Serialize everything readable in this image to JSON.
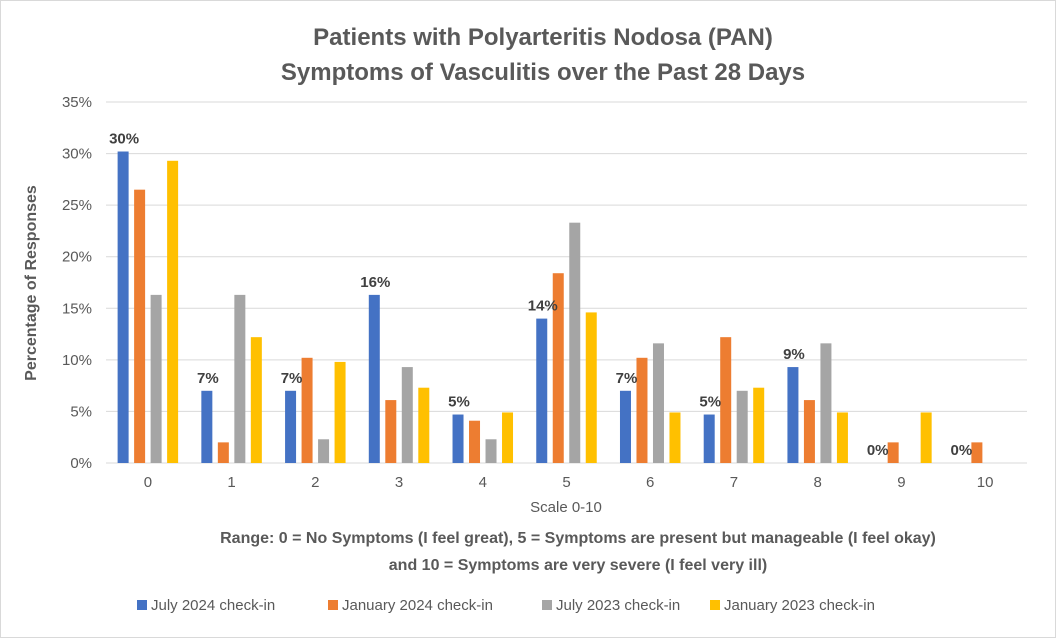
{
  "chart_data": {
    "type": "bar",
    "title": [
      "Patients with Polyarteritis Nodosa (PAN)",
      "Symptoms of Vasculitis over the Past 28 Days"
    ],
    "xlabel": "Scale 0-10",
    "ylabel": "Percentage of Responses",
    "note": [
      "Range: 0 = No Symptoms (I feel great), 5 = Symptoms are present but manageable (I feel okay)",
      "and 10 = Symptoms are very severe (I feel very ill)"
    ],
    "categories": [
      "0",
      "1",
      "2",
      "3",
      "4",
      "5",
      "6",
      "7",
      "8",
      "9",
      "10"
    ],
    "ylim": [
      0,
      35
    ],
    "yticks": [
      "0%",
      "5%",
      "10%",
      "15%",
      "20%",
      "25%",
      "30%",
      "35%"
    ],
    "grid": true,
    "legend_position": "bottom",
    "series": [
      {
        "name": "July 2024 check-in",
        "color": "#4472C4",
        "values": [
          30.2,
          7.0,
          7.0,
          16.3,
          4.7,
          14.0,
          7.0,
          4.7,
          9.3,
          0,
          0
        ],
        "labels": [
          "30%",
          "7%",
          "7%",
          "16%",
          "5%",
          "14%",
          "7%",
          "5%",
          "9%",
          "0%",
          "0%"
        ]
      },
      {
        "name": "January 2024 check-in",
        "color": "#ED7D31",
        "values": [
          26.5,
          2.0,
          10.2,
          6.1,
          4.1,
          18.4,
          10.2,
          12.2,
          6.1,
          2.0,
          2.0
        ]
      },
      {
        "name": "July 2023 check-in",
        "color": "#A5A5A5",
        "values": [
          16.3,
          16.3,
          2.3,
          9.3,
          2.3,
          23.3,
          11.6,
          7.0,
          11.6,
          0,
          0
        ]
      },
      {
        "name": "January 2023 check-in",
        "color": "#FFC000",
        "values": [
          29.3,
          12.2,
          9.8,
          7.3,
          4.9,
          14.6,
          4.9,
          7.3,
          4.9,
          4.9,
          0
        ]
      }
    ]
  }
}
